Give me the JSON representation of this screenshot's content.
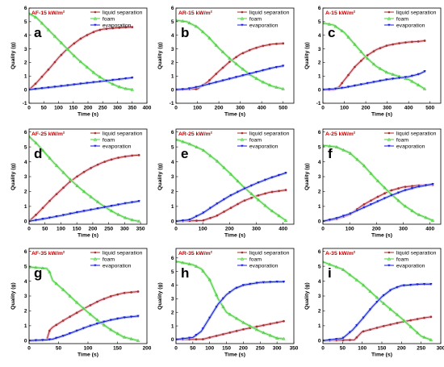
{
  "colors": {
    "liquid_separation": "#a0302a",
    "liquid_separation_band": "#f3b7c8",
    "foam": "#4ccc3f",
    "foam_band": "#b7eeb2",
    "evaporation": "#1a1ad6",
    "evaporation_band": "#aebff3",
    "title": "#c00000"
  },
  "chart_data": [
    {
      "id": "a",
      "type": "line",
      "label": "a",
      "title": "AF-15 kW/m²",
      "xlabel": "Time (s)",
      "ylabel": "Quality (g)",
      "xlim": [
        0,
        400
      ],
      "xticks": [
        0,
        50,
        100,
        150,
        200,
        250,
        300,
        350,
        400
      ],
      "ylim": [
        -1,
        6
      ],
      "yticks": [
        -1,
        0,
        1,
        2,
        3,
        4,
        5,
        6
      ],
      "legend_position": "top-right",
      "legend_entries": [
        "liquid separation",
        "foam",
        "evaporation"
      ],
      "series": [
        {
          "name": "liquid separation",
          "x": [
            0,
            25,
            50,
            75,
            100,
            125,
            150,
            175,
            200,
            225,
            250,
            275,
            300,
            325,
            350
          ],
          "y": [
            0,
            0.5,
            1.1,
            1.7,
            2.35,
            2.9,
            3.35,
            3.75,
            4.05,
            4.3,
            4.45,
            4.5,
            4.55,
            4.58,
            4.6
          ]
        },
        {
          "name": "foam",
          "x": [
            0,
            25,
            50,
            75,
            100,
            125,
            150,
            175,
            200,
            225,
            250,
            275,
            300,
            325,
            350
          ],
          "y": [
            5.6,
            5.3,
            4.75,
            4.2,
            3.65,
            3.1,
            2.55,
            2.05,
            1.6,
            1.15,
            0.8,
            0.5,
            0.25,
            0.08,
            0.0
          ]
        },
        {
          "name": "evaporation",
          "x": [
            0,
            50,
            100,
            150,
            200,
            250,
            300,
            350
          ],
          "y": [
            0,
            0.12,
            0.24,
            0.37,
            0.5,
            0.62,
            0.75,
            0.88
          ]
        }
      ]
    },
    {
      "id": "b",
      "type": "line",
      "label": "b",
      "title": "AR-15 kW/m²",
      "xlabel": "Time (s)",
      "ylabel": "Quality (g)",
      "xlim": [
        0,
        550
      ],
      "xticks": [
        0,
        100,
        200,
        300,
        400,
        500
      ],
      "ylim": [
        -1,
        6
      ],
      "yticks": [
        -1,
        0,
        1,
        2,
        3,
        4,
        5,
        6
      ],
      "legend_position": "top-right",
      "legend_entries": [
        "liquid separation",
        "foam",
        "evaporation"
      ],
      "series": [
        {
          "name": "liquid separation",
          "x": [
            0,
            100,
            150,
            200,
            250,
            300,
            350,
            400,
            450,
            500
          ],
          "y": [
            0,
            0.05,
            0.6,
            1.35,
            2.05,
            2.6,
            2.95,
            3.2,
            3.35,
            3.4
          ]
        },
        {
          "name": "foam",
          "x": [
            0,
            50,
            100,
            150,
            200,
            250,
            300,
            350,
            400,
            450,
            500
          ],
          "y": [
            5.1,
            5.0,
            4.6,
            3.9,
            3.05,
            2.3,
            1.65,
            1.05,
            0.6,
            0.25,
            0.05
          ]
        },
        {
          "name": "evaporation",
          "x": [
            0,
            50,
            100,
            150,
            200,
            250,
            300,
            350,
            400,
            450,
            500
          ],
          "y": [
            0,
            0.05,
            0.2,
            0.4,
            0.6,
            0.8,
            1.0,
            1.2,
            1.4,
            1.6,
            1.75
          ]
        }
      ]
    },
    {
      "id": "c",
      "type": "line",
      "label": "c",
      "title": "A-15 kW/m²",
      "xlabel": "Time (s)",
      "ylabel": "Quality (g)",
      "xlim": [
        0,
        550
      ],
      "xticks": [
        0,
        100,
        200,
        300,
        400,
        500
      ],
      "ylim": [
        -1,
        6
      ],
      "yticks": [
        -1,
        0,
        1,
        2,
        3,
        4,
        5,
        6
      ],
      "legend_position": "top-right",
      "legend_entries": [
        "liquid separation",
        "foam",
        "evaporation"
      ],
      "series": [
        {
          "name": "liquid separation",
          "x": [
            0,
            50,
            75,
            100,
            150,
            200,
            250,
            300,
            350,
            400,
            450,
            475
          ],
          "y": [
            0,
            0,
            0.2,
            0.7,
            1.7,
            2.45,
            2.95,
            3.25,
            3.4,
            3.5,
            3.55,
            3.6
          ]
        },
        {
          "name": "foam",
          "x": [
            0,
            50,
            100,
            150,
            200,
            250,
            300,
            350,
            400,
            450,
            475
          ],
          "y": [
            4.9,
            4.75,
            4.2,
            3.3,
            2.4,
            1.7,
            1.25,
            1.0,
            0.75,
            0.3,
            0.05
          ]
        },
        {
          "name": "evaporation",
          "x": [
            0,
            50,
            100,
            150,
            200,
            250,
            300,
            350,
            400,
            450,
            475
          ],
          "y": [
            0,
            0.05,
            0.15,
            0.3,
            0.45,
            0.6,
            0.75,
            0.85,
            0.95,
            1.15,
            1.35
          ]
        }
      ]
    },
    {
      "id": "d",
      "type": "line",
      "label": "d",
      "title": "AF-25 kW/m²",
      "xlabel": "Time (s)",
      "ylabel": "Quality (g)",
      "xlim": [
        0,
        370
      ],
      "xticks": [
        0,
        50,
        100,
        150,
        200,
        250,
        300,
        350
      ],
      "ylim": [
        -0.2,
        6.2
      ],
      "yticks": [
        0,
        1,
        2,
        3,
        4,
        5,
        6
      ],
      "legend_position": "top-right",
      "legend_entries": [
        "liquid separation",
        "foam",
        "evaporation"
      ],
      "series": [
        {
          "name": "liquid separation",
          "x": [
            0,
            25,
            50,
            75,
            100,
            125,
            150,
            175,
            200,
            225,
            250,
            275,
            300,
            325,
            345
          ],
          "y": [
            0,
            0.5,
            1.05,
            1.6,
            2.1,
            2.6,
            3.0,
            3.35,
            3.65,
            3.9,
            4.1,
            4.25,
            4.35,
            4.42,
            4.45
          ]
        },
        {
          "name": "foam",
          "x": [
            0,
            25,
            50,
            75,
            100,
            125,
            150,
            175,
            200,
            225,
            250,
            275,
            300,
            325,
            345
          ],
          "y": [
            5.7,
            5.2,
            4.6,
            4.0,
            3.45,
            2.9,
            2.4,
            1.95,
            1.55,
            1.15,
            0.8,
            0.5,
            0.25,
            0.08,
            0.0
          ]
        },
        {
          "name": "evaporation",
          "x": [
            0,
            50,
            100,
            150,
            200,
            250,
            300,
            345
          ],
          "y": [
            0,
            0.18,
            0.38,
            0.6,
            0.8,
            1.0,
            1.2,
            1.35
          ]
        }
      ]
    },
    {
      "id": "e",
      "type": "line",
      "label": "e",
      "title": "AR-25 kW/m²",
      "xlabel": "Time (s)",
      "ylabel": "Quality (g)",
      "xlim": [
        0,
        440
      ],
      "xticks": [
        0,
        100,
        200,
        300,
        400
      ],
      "ylim": [
        -0.2,
        6.2
      ],
      "yticks": [
        0,
        1,
        2,
        3,
        4,
        5,
        6
      ],
      "legend_position": "top-right",
      "legend_entries": [
        "liquid separation",
        "foam",
        "evaporation"
      ],
      "series": [
        {
          "name": "liquid separation",
          "x": [
            0,
            100,
            150,
            200,
            250,
            300,
            350,
            410
          ],
          "y": [
            0,
            0.05,
            0.35,
            0.85,
            1.35,
            1.7,
            1.95,
            2.1
          ]
        },
        {
          "name": "foam",
          "x": [
            0,
            50,
            100,
            150,
            200,
            250,
            300,
            350,
            410
          ],
          "y": [
            5.5,
            5.2,
            4.8,
            4.1,
            3.25,
            2.35,
            1.55,
            0.8,
            0.05
          ]
        },
        {
          "name": "evaporation",
          "x": [
            0,
            50,
            100,
            150,
            200,
            250,
            300,
            350,
            410
          ],
          "y": [
            0,
            0.1,
            0.55,
            1.15,
            1.7,
            2.15,
            2.55,
            2.9,
            3.25
          ]
        }
      ]
    },
    {
      "id": "f",
      "type": "line",
      "label": "f",
      "title": "A-25 kW/m²",
      "xlabel": "Time (s)",
      "ylabel": "Quality (g)",
      "xlim": [
        0,
        440
      ],
      "xticks": [
        0,
        100,
        200,
        300,
        400
      ],
      "ylim": [
        -0.2,
        6.2
      ],
      "yticks": [
        0,
        1,
        2,
        3,
        4,
        5,
        6
      ],
      "legend_position": "top-right",
      "legend_entries": [
        "liquid separation",
        "foam",
        "evaporation"
      ],
      "series": [
        {
          "name": "liquid separation",
          "x": [
            0,
            50,
            100,
            150,
            200,
            250,
            300,
            350,
            410
          ],
          "y": [
            0,
            0.15,
            0.45,
            1.1,
            1.6,
            2.05,
            2.3,
            2.4,
            2.45
          ]
        },
        {
          "name": "foam",
          "x": [
            0,
            50,
            100,
            150,
            200,
            250,
            300,
            350,
            410
          ],
          "y": [
            5.1,
            5.0,
            4.6,
            3.8,
            2.8,
            1.9,
            1.1,
            0.5,
            0.05
          ]
        },
        {
          "name": "evaporation",
          "x": [
            0,
            50,
            100,
            150,
            200,
            250,
            300,
            350,
            410
          ],
          "y": [
            0,
            0.2,
            0.5,
            0.9,
            1.3,
            1.7,
            2.05,
            2.3,
            2.5
          ]
        }
      ]
    },
    {
      "id": "g",
      "type": "line",
      "label": "g",
      "title": "AF-35 kW/m²",
      "xlabel": "Time (s)",
      "ylabel": "Quality (g)",
      "xlim": [
        0,
        200
      ],
      "xticks": [
        0,
        50,
        100,
        150,
        200
      ],
      "ylim": [
        -0.2,
        6.2
      ],
      "yticks": [
        0,
        1,
        2,
        3,
        4,
        5,
        6
      ],
      "legend_position": "top-right",
      "legend_entries": [
        "liquid separation",
        "foam",
        "evaporation"
      ],
      "series": [
        {
          "name": "liquid separation",
          "x": [
            0,
            30,
            35,
            40,
            60,
            80,
            100,
            120,
            140,
            160,
            185
          ],
          "y": [
            0,
            0.05,
            0.7,
            0.9,
            1.4,
            1.85,
            2.3,
            2.7,
            3.0,
            3.2,
            3.3
          ]
        },
        {
          "name": "foam",
          "x": [
            0,
            30,
            35,
            40,
            60,
            80,
            100,
            120,
            140,
            160,
            185
          ],
          "y": [
            4.95,
            4.85,
            4.6,
            4.05,
            3.35,
            2.6,
            1.9,
            1.25,
            0.7,
            0.25,
            0.0
          ]
        },
        {
          "name": "evaporation",
          "x": [
            0,
            30,
            40,
            60,
            80,
            100,
            120,
            140,
            160,
            185
          ],
          "y": [
            0,
            0.05,
            0.1,
            0.35,
            0.65,
            0.95,
            1.2,
            1.4,
            1.55,
            1.65
          ]
        }
      ]
    },
    {
      "id": "h",
      "type": "line",
      "label": "h",
      "title": "AR-35 kW/m²",
      "xlabel": "Time (s)",
      "ylabel": "Quality (g)",
      "xlim": [
        0,
        350
      ],
      "xticks": [
        0,
        50,
        100,
        150,
        200,
        250,
        300,
        350
      ],
      "ylim": [
        -0.3,
        6.7
      ],
      "yticks": [
        0,
        1,
        2,
        3,
        4,
        5,
        6
      ],
      "legend_position": "top-right",
      "legend_entries": [
        "liquid separation",
        "foam",
        "evaporation"
      ],
      "series": [
        {
          "name": "liquid separation",
          "x": [
            0,
            80,
            100,
            150,
            200,
            250,
            300,
            320
          ],
          "y": [
            0,
            0.02,
            0.15,
            0.45,
            0.75,
            1.0,
            1.25,
            1.35
          ]
        },
        {
          "name": "foam",
          "x": [
            0,
            50,
            75,
            100,
            125,
            150,
            200,
            250,
            300,
            320
          ],
          "y": [
            5.75,
            5.5,
            5.2,
            4.4,
            3.0,
            2.0,
            1.25,
            0.6,
            0.1,
            0.05
          ]
        },
        {
          "name": "evaporation",
          "x": [
            0,
            50,
            75,
            100,
            125,
            150,
            175,
            200,
            250,
            300,
            320
          ],
          "y": [
            0,
            0.15,
            0.6,
            1.6,
            2.6,
            3.3,
            3.75,
            4.0,
            4.2,
            4.25,
            4.25
          ]
        }
      ]
    },
    {
      "id": "i",
      "type": "line",
      "label": "i",
      "title": "A-35 kW/m²",
      "xlabel": "Time (s)",
      "ylabel": "Quality (g)",
      "xlim": [
        0,
        300
      ],
      "xticks": [
        0,
        50,
        100,
        150,
        200,
        250,
        300
      ],
      "ylim": [
        -0.2,
        6.2
      ],
      "yticks": [
        0,
        1,
        2,
        3,
        4,
        5,
        6
      ],
      "legend_position": "top-right",
      "legend_entries": [
        "liquid separation",
        "foam",
        "evaporation"
      ],
      "series": [
        {
          "name": "liquid separation",
          "x": [
            0,
            80,
            100,
            150,
            200,
            250,
            275
          ],
          "y": [
            0,
            0.05,
            0.6,
            0.95,
            1.25,
            1.5,
            1.6
          ]
        },
        {
          "name": "foam",
          "x": [
            0,
            50,
            100,
            150,
            200,
            250,
            275
          ],
          "y": [
            5.3,
            4.8,
            3.8,
            2.6,
            1.5,
            0.3,
            0.05
          ]
        },
        {
          "name": "evaporation",
          "x": [
            0,
            50,
            75,
            100,
            125,
            150,
            175,
            200,
            250,
            275
          ],
          "y": [
            0,
            0.15,
            0.7,
            1.45,
            2.25,
            2.95,
            3.45,
            3.7,
            3.8,
            3.8
          ]
        }
      ]
    }
  ]
}
